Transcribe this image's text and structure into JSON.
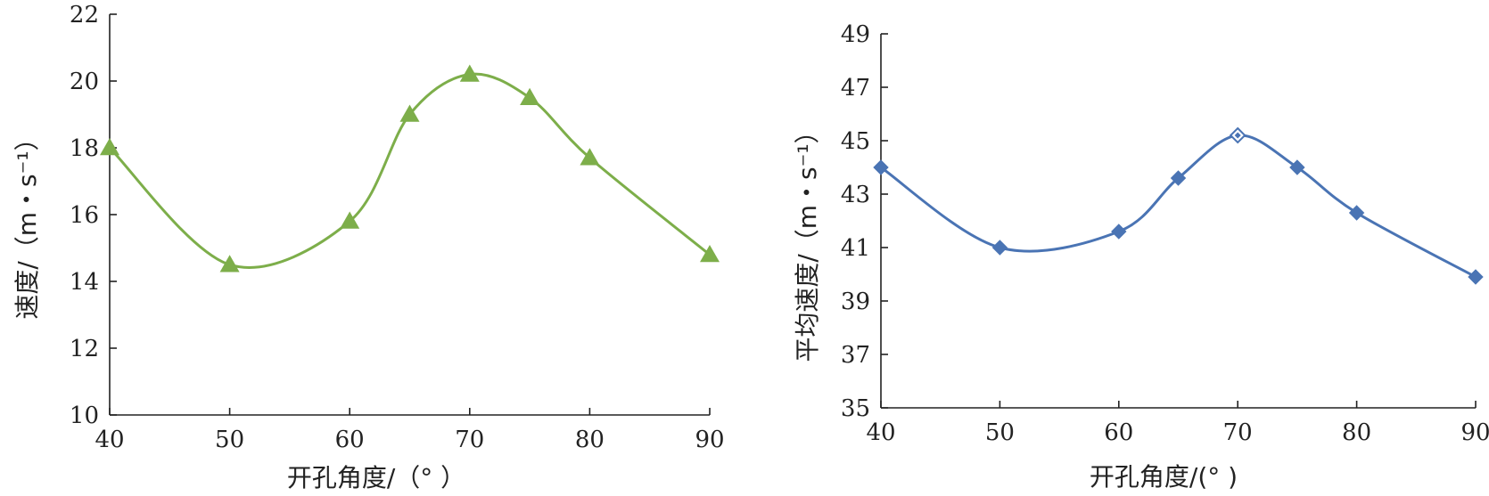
{
  "chart_data": [
    {
      "type": "line",
      "xlabel": "开孔角度/（°  ）",
      "ylabel": "速度/（m・s⁻¹）",
      "xlim": [
        40,
        90
      ],
      "ylim": [
        10,
        22
      ],
      "xticks": [
        "40",
        "50",
        "60",
        "70",
        "80",
        "90"
      ],
      "yticks": [
        "10",
        "12",
        "14",
        "16",
        "18",
        "20",
        "22"
      ],
      "series": [
        {
          "marker": "triangle",
          "color": "#7DAE4A",
          "x": [
            40,
            50,
            60,
            65,
            70,
            75,
            80,
            90
          ],
          "y": [
            18.0,
            14.5,
            15.8,
            19.0,
            20.2,
            19.5,
            17.7,
            14.8
          ]
        }
      ],
      "grid": false
    },
    {
      "type": "line",
      "xlabel": "开孔角度/(°  )",
      "ylabel": "平均速度/（m・s⁻¹）",
      "xlim": [
        40,
        90
      ],
      "ylim": [
        35,
        49
      ],
      "xticks": [
        "40",
        "50",
        "60",
        "70",
        "80",
        "90"
      ],
      "yticks": [
        "35",
        "37",
        "39",
        "41",
        "43",
        "45",
        "47",
        "49"
      ],
      "series": [
        {
          "marker": "diamond",
          "color": "#4A74B4",
          "x": [
            40,
            50,
            60,
            65,
            70,
            75,
            80,
            90
          ],
          "y": [
            44.0,
            41.0,
            41.6,
            43.6,
            45.2,
            44.0,
            42.3,
            39.9
          ],
          "hollow_index": 4
        }
      ],
      "grid": false
    }
  ]
}
